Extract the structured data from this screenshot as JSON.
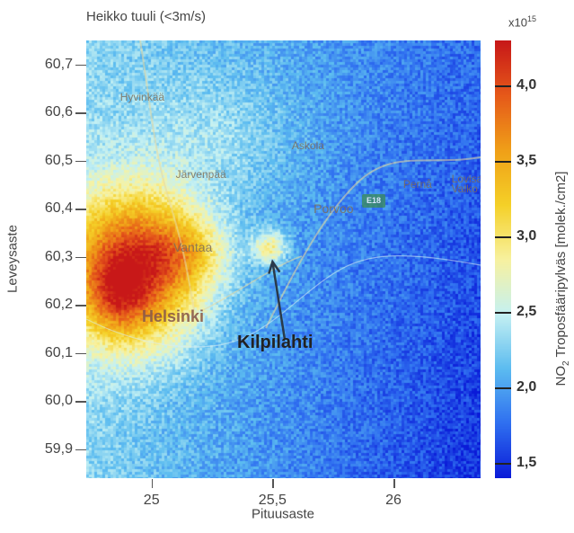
{
  "title": "Heikko tuuli (<3m/s)",
  "colorbar": {
    "multiplier_base": "x10",
    "multiplier_exp": "15",
    "label_pre": "NO",
    "label_sub": "2",
    "label_post": " Troposfääripylväs [molek./cm2]",
    "range": [
      1.4,
      4.3
    ],
    "ticks": [
      "1,5",
      "2,0",
      "2,5",
      "3,0",
      "3,5",
      "4,0"
    ],
    "tick_values": [
      1.5,
      2.0,
      2.5,
      3.0,
      3.5,
      4.0
    ],
    "colors": [
      "#0a1ad8",
      "#2f6ff0",
      "#5cbcf0",
      "#c5f1f3",
      "#f8f2a0",
      "#f5d128",
      "#f0a018",
      "#e65a1a",
      "#c81818"
    ]
  },
  "axes": {
    "xlabel": "Pituusaste",
    "ylabel": "Leveysaste",
    "xlim": [
      24.73,
      26.36
    ],
    "ylim": [
      59.84,
      60.75
    ],
    "xticks": [
      "25",
      "25,5",
      "26"
    ],
    "xtick_values": [
      25.0,
      25.5,
      26.0
    ],
    "yticks": [
      "60,7",
      "60,6",
      "60,5",
      "60,4",
      "60,3",
      "60,2",
      "60,1",
      "60,0",
      "59,9"
    ],
    "ytick_values": [
      60.7,
      60.6,
      60.5,
      60.4,
      60.3,
      60.2,
      60.1,
      60.0,
      59.9
    ]
  },
  "places": [
    {
      "name": "Hyvinkää",
      "lon": 24.87,
      "lat": 60.63,
      "class": ""
    },
    {
      "name": "Askola",
      "lon": 25.58,
      "lat": 60.53,
      "class": ""
    },
    {
      "name": "Järvenpää",
      "lon": 25.1,
      "lat": 60.47,
      "class": ""
    },
    {
      "name": "Pernå",
      "lon": 26.04,
      "lat": 60.45,
      "class": ""
    },
    {
      "name": "Lovisa",
      "lon": 26.24,
      "lat": 60.46,
      "class": ""
    },
    {
      "name": "Valko",
      "lon": 26.24,
      "lat": 60.44,
      "class": ""
    },
    {
      "name": "Porvoo",
      "lon": 25.67,
      "lat": 60.4,
      "class": "mid"
    },
    {
      "name": "Vantaa",
      "lon": 25.09,
      "lat": 60.32,
      "class": "mid"
    },
    {
      "name": "Helsinki",
      "lon": 24.96,
      "lat": 60.18,
      "class": "big"
    }
  ],
  "route_badges": [
    {
      "label": "E18",
      "lon": 25.87,
      "lat": 60.43
    }
  ],
  "annotation": {
    "text": "Kilpilahti",
    "arrow_from": [
      25.55,
      60.13
    ],
    "arrow_to": [
      25.5,
      60.29
    ]
  },
  "field": {
    "background": 2.3,
    "sources": [
      {
        "lon": 24.93,
        "lat": 60.28,
        "amp": 1.9,
        "sx": 0.2,
        "sy": 0.11
      },
      {
        "lon": 24.86,
        "lat": 60.22,
        "amp": 0.6,
        "sx": 0.09,
        "sy": 0.06
      },
      {
        "lon": 25.15,
        "lat": 60.31,
        "amp": 0.5,
        "sx": 0.12,
        "sy": 0.05
      },
      {
        "lon": 25.49,
        "lat": 60.32,
        "amp": 0.85,
        "sx": 0.05,
        "sy": 0.025
      },
      {
        "lon": 25.3,
        "lat": 60.55,
        "amp": 0.25,
        "sx": 0.25,
        "sy": 0.1
      }
    ],
    "gradient_east": -0.55,
    "gradient_south": -0.25
  }
}
